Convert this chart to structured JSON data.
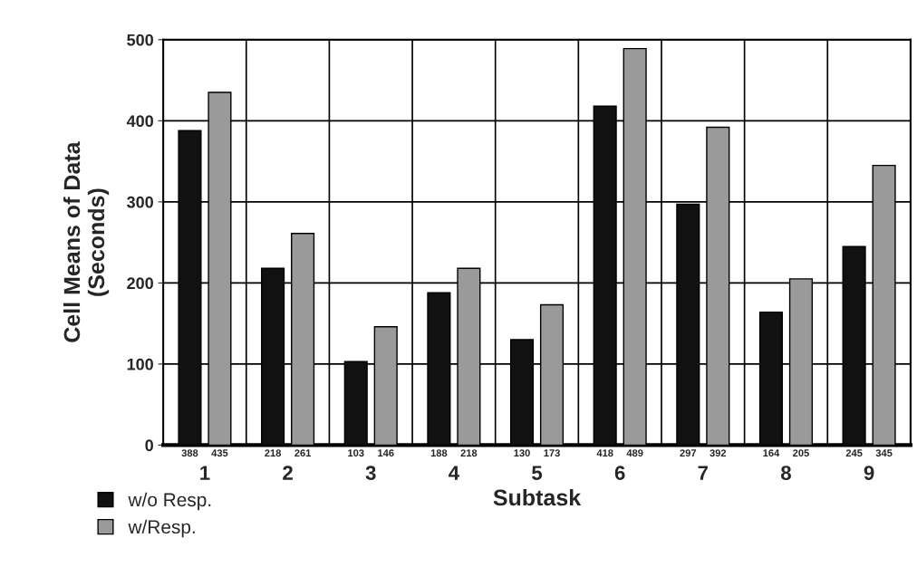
{
  "chart_data": {
    "type": "bar",
    "xlabel": "Subtask",
    "ylabel": "Cell Means of Data\n(Seconds)",
    "categories": [
      "1",
      "2",
      "3",
      "4",
      "5",
      "6",
      "7",
      "8",
      "9"
    ],
    "series": [
      {
        "name": "w/o Resp.",
        "color": "#111111",
        "values": [
          388,
          218,
          103,
          188,
          130,
          418,
          297,
          164,
          245
        ],
        "value_labels": [
          "388",
          "218",
          "103",
          "188",
          "130",
          "418",
          "297",
          "164",
          "245"
        ]
      },
      {
        "name": "w/Resp.",
        "color": "#9a9a9a",
        "values": [
          435,
          261,
          146,
          218,
          173,
          489,
          392,
          205,
          345
        ],
        "value_labels": [
          "435",
          "261",
          "146",
          "218",
          "173",
          "489",
          "392",
          "205",
          "345"
        ]
      }
    ],
    "ylim": [
      0,
      500
    ],
    "yticks": [
      0,
      100,
      200,
      300,
      400,
      500
    ],
    "grid": true,
    "legend": "bottom left"
  }
}
